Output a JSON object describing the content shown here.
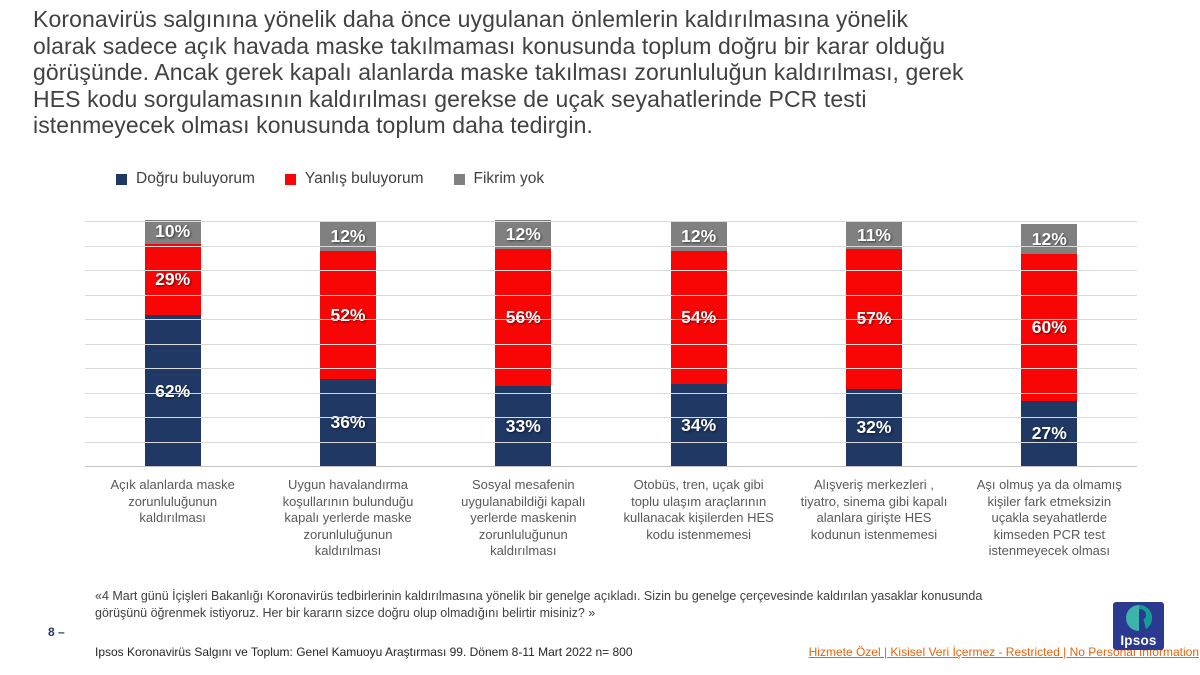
{
  "slide": {
    "title_lines": [
      "Koronavirüs salgınına yönelik daha önce uygulanan önlemlerin kaldırılmasına yönelik",
      "olarak sadece açık havada maske takılmaması konusunda toplum doğru bir karar olduğu",
      "görüşünde. Ancak gerek kapalı alanlarda maske takılması zorunluluğun kaldırılması, gerek",
      "HES kodu sorgulamasının kaldırılması gerekse de uçak seyahatlerinde PCR testi",
      "istenmeyecek olması  konusunda toplum daha tedirgin."
    ],
    "footnote_lines": [
      "«4 Mart günü İçişleri Bakanlığı  Koronavirüs tedbirlerinin kaldırılmasına  yönelik  bir genelge açıkladı.  Sizin bu genelge  çerçevesinde kaldırılan  yasaklar konusunda",
      "görüşünü öğrenmek istiyoruz.  Her bir kararın  sizce doğru olup olmadığını  belirtir misiniz? »"
    ],
    "page_label": "8 –",
    "source_line": "Ipsos Koronavirüs  Salgını ve Toplum:  Genel Kamuoyu Araştırması 99. Dönem  8-11 Mart 2022 n= 800",
    "confidentiality": "Hizmete Özel | Kisisel Veri İçermez - Restricted | No Personal Information",
    "logo_text": "Ipsos"
  },
  "colors": {
    "dogru_navy": "#1F3864",
    "yanlis_red": "#F80505",
    "fikrim_gray": "#808080",
    "gridline": "#D9D9D9",
    "orange_link": "#E8630C",
    "logo_navy": "#2B3990",
    "logo_teal": "#3CB4AB"
  },
  "chart_data": {
    "type": "bar",
    "stacked": true,
    "percent_stacked": true,
    "unit": "%",
    "ylim": [
      0,
      100
    ],
    "gridlines": "horizontal every 10%",
    "legend_position": "top-left",
    "categories": [
      "Açık alanlarda maske zorunluluğunun kaldırılması",
      "Uygun havalandırma koşullarının bulunduğu kapalı yerlerde maske zorunluluğunun kaldırılması",
      "Sosyal mesafenin uygulanabildiği kapalı yerlerde maskenin zorunluluğunun kaldırılması",
      "Otobüs, tren, uçak gibi toplu ulaşım araçlarının kullanacak kişilerden HES kodu istenmemesi",
      "Alışveriş merkezleri , tiyatro, sinema gibi kapalı alanlara girişte HES kodunun istenmemesi",
      "Aşı olmuş ya da olmamış kişiler fark etmeksizin uçakla seyahatlerde kimseden PCR test istenmeyecek olması"
    ],
    "series": [
      {
        "name": "Doğru buluyorum",
        "color": "#1F3864",
        "values": [
          62,
          36,
          33,
          34,
          32,
          27
        ]
      },
      {
        "name": "Yanlış buluyorum",
        "color": "#F80505",
        "values": [
          29,
          52,
          56,
          54,
          57,
          60
        ]
      },
      {
        "name": "Fikrim yok",
        "color": "#808080",
        "values": [
          10,
          12,
          12,
          12,
          11,
          12
        ]
      }
    ]
  }
}
